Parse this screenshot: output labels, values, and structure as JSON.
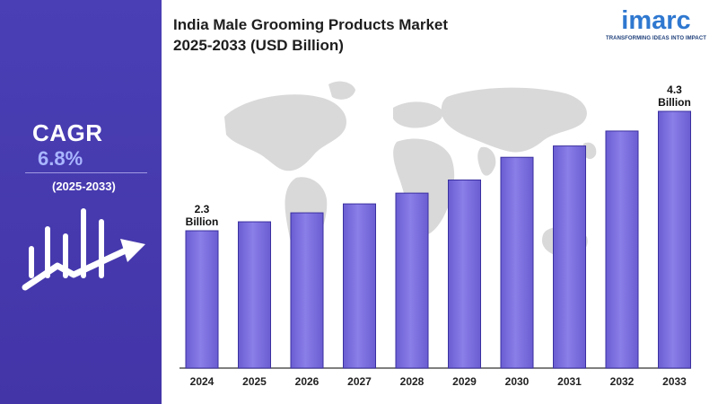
{
  "title_line1": "India Male Grooming Products Market",
  "title_line2": "2025-2033 (USD Billion)",
  "logo": {
    "word": "imarc",
    "tagline": "TRANSFORMING IDEAS INTO IMPACT"
  },
  "cagr": {
    "label": "CAGR",
    "value": "6.8%",
    "period": "(2025-2033)"
  },
  "colors": {
    "panel": "#4a3fb5",
    "bar_top": "#8c80ea",
    "bar_bottom": "#6f62d6",
    "bar_edge": "#3b30a0",
    "axis": "#555555",
    "map": "#d9d9d9",
    "accent_text": "#a9b6ff"
  },
  "chart_data": {
    "type": "bar",
    "categories": [
      "2024",
      "2025",
      "2026",
      "2027",
      "2028",
      "2029",
      "2030",
      "2031",
      "2032",
      "2033"
    ],
    "values": [
      2.3,
      2.45,
      2.6,
      2.75,
      2.93,
      3.15,
      3.53,
      3.72,
      3.97,
      4.3
    ],
    "annotations": [
      {
        "category": "2024",
        "line1": "2.3",
        "line2": "Billion"
      },
      {
        "category": "2033",
        "line1": "4.3",
        "line2": "Billion"
      }
    ],
    "ylim": [
      0,
      4.3
    ],
    "xlabel": "",
    "ylabel": "",
    "grid": false,
    "legend": "none"
  }
}
